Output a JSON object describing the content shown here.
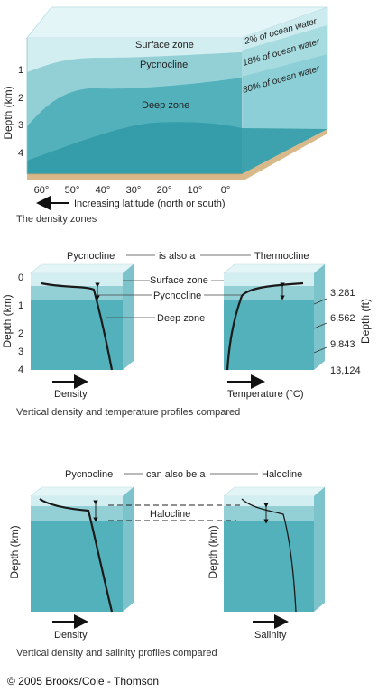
{
  "block_diagram": {
    "zones": [
      "Surface zone",
      "Pycnocline",
      "Deep zone"
    ],
    "percentages": [
      "2% of ocean water",
      "18% of ocean water",
      "80% of ocean water"
    ],
    "depth_axis_label": "Depth (km)",
    "depth_ticks": [
      "1",
      "2",
      "3",
      "4"
    ],
    "latitude_ticks": [
      "60°",
      "50°",
      "40°",
      "30°",
      "20°",
      "10°",
      "0°"
    ],
    "latitude_label": "Increasing latitude (north or south)",
    "caption": "The density zones"
  },
  "profiles_temperature": {
    "left_title": "Pycnocline",
    "middle_title": "is also a",
    "right_title": "Thermocline",
    "zone_labels": [
      "Surface zone",
      "Pycnocline",
      "Deep zone"
    ],
    "depth_km_label": "Depth (km)",
    "depth_km_ticks": [
      "0",
      "1",
      "2",
      "3",
      "4"
    ],
    "depth_ft_label": "Depth (ft)",
    "depth_ft_ticks": [
      "3,281",
      "6,562",
      "9,843",
      "13,124"
    ],
    "left_axis": "Density",
    "right_axis": "Temperature (°C)",
    "caption": "Vertical density and temperature profiles compared"
  },
  "profiles_salinity": {
    "left_title": "Pycnocline",
    "middle_title": "can also be a",
    "right_title": "Halocline",
    "middle_label": "Halocline",
    "left_depth_label": "Depth (km)",
    "right_depth_label": "Depth (km)",
    "left_axis": "Density",
    "right_axis": "Salinity",
    "caption": "Vertical density and salinity profiles compared"
  },
  "colors": {
    "surface": "#d2eef1",
    "pycnocline": "#93d0d6",
    "deep": "#52b1bb",
    "deep_dark": "#2f9aa6",
    "side": "#8ccfd6",
    "top": "#e4f5f7",
    "seafloor": "#d9b98a"
  },
  "copyright": "© 2005 Brooks/Cole - Thomson"
}
